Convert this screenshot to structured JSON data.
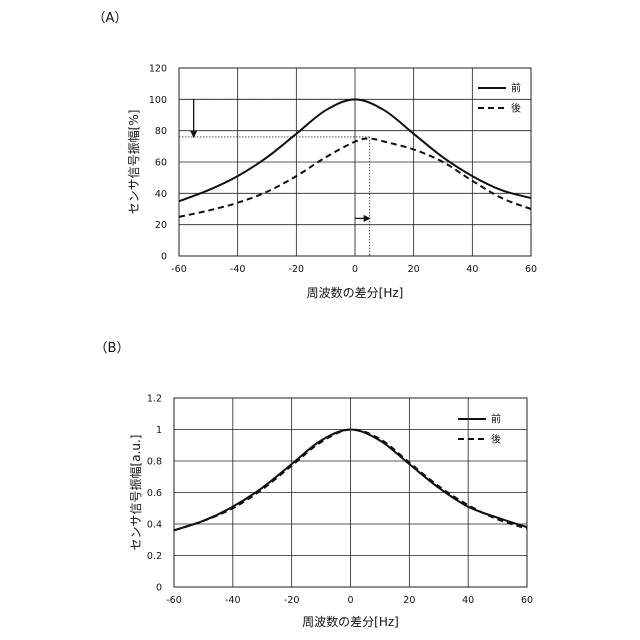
{
  "chart_data": [
    {
      "panel_label": "（A）",
      "type": "line",
      "xlabel": "周波数の差分[Hz]",
      "ylabel": "センサ信号振幅[%]",
      "xlim": [
        -60,
        60
      ],
      "ylim": [
        0,
        120
      ],
      "xticks": [
        -60,
        -40,
        -20,
        0,
        20,
        40,
        60
      ],
      "yticks": [
        0,
        20,
        40,
        60,
        80,
        100,
        120
      ],
      "grid": true,
      "legend_position": "top-right",
      "series": [
        {
          "name": "前",
          "style": "solid",
          "x": [
            -60,
            -50,
            -40,
            -30,
            -20,
            -10,
            0,
            10,
            20,
            30,
            40,
            50,
            60
          ],
          "y": [
            35,
            42,
            51,
            63,
            78,
            93,
            100,
            93,
            78,
            63,
            51,
            42,
            37
          ]
        },
        {
          "name": "後",
          "style": "dashed",
          "x": [
            -60,
            -50,
            -40,
            -30,
            -20,
            -10,
            0,
            5,
            10,
            20,
            30,
            40,
            50,
            60
          ],
          "y": [
            25,
            29,
            34,
            41,
            51,
            63,
            73,
            75,
            73,
            68,
            60,
            48,
            37,
            30
          ]
        }
      ],
      "annotations": {
        "peak_before": {
          "x": 0,
          "y": 100
        },
        "peak_after": {
          "x": 5,
          "y": 75
        },
        "amplitude_drop_arrow": {
          "x": -55,
          "y_from": 100,
          "y_to": 76
        },
        "frequency_shift_arrow": {
          "y": 24,
          "x_from": 0,
          "x_to": 5
        }
      }
    },
    {
      "panel_label": "（B）",
      "type": "line",
      "xlabel": "周波数の差分[Hz]",
      "ylabel": "センサ信号振幅[a.u.]",
      "xlim": [
        -60,
        60
      ],
      "ylim": [
        0,
        1.2
      ],
      "xticks": [
        -60,
        -40,
        -20,
        0,
        20,
        40,
        60
      ],
      "yticks": [
        0,
        0.2,
        0.4,
        0.6,
        0.8,
        1,
        1.2
      ],
      "grid": true,
      "legend_position": "top-right",
      "series": [
        {
          "name": "前",
          "style": "solid",
          "x": [
            -60,
            -50,
            -40,
            -30,
            -20,
            -10,
            0,
            10,
            20,
            30,
            40,
            50,
            60
          ],
          "y": [
            0.36,
            0.42,
            0.51,
            0.63,
            0.78,
            0.93,
            1.0,
            0.93,
            0.78,
            0.63,
            0.51,
            0.44,
            0.38
          ]
        },
        {
          "name": "後",
          "style": "dashed",
          "x": [
            -60,
            -50,
            -40,
            -30,
            -20,
            -10,
            0,
            10,
            20,
            30,
            40,
            50,
            60
          ],
          "y": [
            0.36,
            0.42,
            0.5,
            0.62,
            0.77,
            0.92,
            1.0,
            0.94,
            0.79,
            0.64,
            0.52,
            0.43,
            0.37
          ]
        }
      ]
    }
  ]
}
